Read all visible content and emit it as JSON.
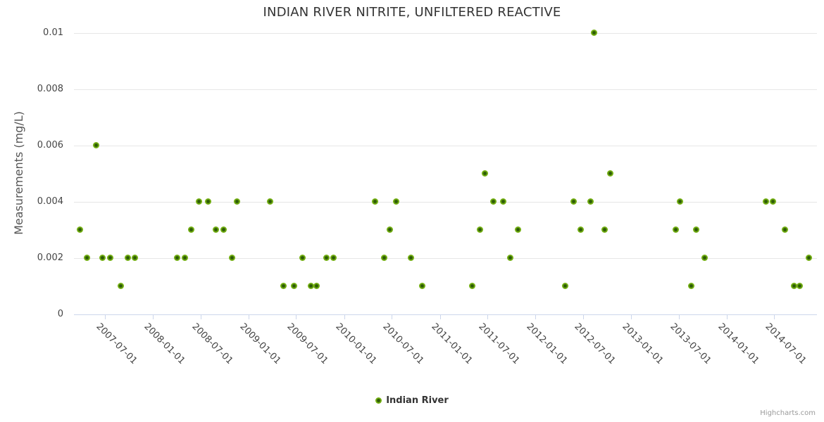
{
  "credits": {
    "text": "Highcharts.com"
  },
  "chart_data": {
    "type": "scatter",
    "title": "INDIAN RIVER NITRITE, UNFILTERED REACTIVE",
    "xlabel": "",
    "ylabel": "Measurements (mg/L)",
    "x_axis_type": "datetime",
    "x_tick_labels": [
      "2007-07-01",
      "2008-01-01",
      "2008-07-01",
      "2009-01-01",
      "2009-07-01",
      "2010-01-01",
      "2010-07-01",
      "2011-01-01",
      "2011-07-01",
      "2012-01-01",
      "2012-07-01",
      "2013-01-01",
      "2013-07-01",
      "2014-01-01",
      "2014-07-01"
    ],
    "y_ticks": [
      0,
      0.002,
      0.004,
      0.006,
      0.008,
      0.01
    ],
    "ylim": [
      0,
      0.01
    ],
    "grid": true,
    "legend_position": "bottom-center",
    "marker_color": "#72ae12",
    "marker_inner_color": "#2d5c06",
    "series": [
      {
        "name": "Indian River",
        "points": [
          [
            "2007-03-28",
            0.003
          ],
          [
            "2007-04-25",
            0.002
          ],
          [
            "2007-05-28",
            0.006
          ],
          [
            "2007-06-23",
            0.002
          ],
          [
            "2007-07-23",
            0.002
          ],
          [
            "2007-08-30",
            0.001
          ],
          [
            "2007-09-26",
            0.002
          ],
          [
            "2007-10-24",
            0.002
          ],
          [
            "2008-04-02",
            0.002
          ],
          [
            "2008-05-02",
            0.002
          ],
          [
            "2008-05-27",
            0.003
          ],
          [
            "2008-06-24",
            0.004
          ],
          [
            "2008-07-31",
            0.004
          ],
          [
            "2008-08-28",
            0.003
          ],
          [
            "2008-09-26",
            0.003
          ],
          [
            "2008-10-28",
            0.002
          ],
          [
            "2008-11-17",
            0.004
          ],
          [
            "2009-03-23",
            0.004
          ],
          [
            "2009-05-14",
            0.001
          ],
          [
            "2009-06-23",
            0.001
          ],
          [
            "2009-07-26",
            0.002
          ],
          [
            "2009-08-26",
            0.001
          ],
          [
            "2009-09-18",
            0.001
          ],
          [
            "2009-10-25",
            0.002
          ],
          [
            "2009-11-22",
            0.002
          ],
          [
            "2010-04-28",
            0.004
          ],
          [
            "2010-06-02",
            0.002
          ],
          [
            "2010-06-24",
            0.003
          ],
          [
            "2010-07-19",
            0.004
          ],
          [
            "2010-09-13",
            0.002
          ],
          [
            "2010-10-25",
            0.001
          ],
          [
            "2011-05-04",
            0.001
          ],
          [
            "2011-06-02",
            0.003
          ],
          [
            "2011-06-21",
            0.005
          ],
          [
            "2011-07-25",
            0.004
          ],
          [
            "2011-08-30",
            0.004
          ],
          [
            "2011-09-26",
            0.002
          ],
          [
            "2011-10-26",
            0.003
          ],
          [
            "2012-04-24",
            0.001
          ],
          [
            "2012-05-27",
            0.004
          ],
          [
            "2012-06-23",
            0.003
          ],
          [
            "2012-07-29",
            0.004
          ],
          [
            "2012-08-11",
            0.01
          ],
          [
            "2012-09-20",
            0.003
          ],
          [
            "2012-10-13",
            0.005
          ],
          [
            "2013-06-20",
            0.003
          ],
          [
            "2013-07-07",
            0.004
          ],
          [
            "2013-08-18",
            0.001
          ],
          [
            "2013-09-07",
            0.003
          ],
          [
            "2013-10-07",
            0.002
          ],
          [
            "2014-05-31",
            0.004
          ],
          [
            "2014-06-27",
            0.004
          ],
          [
            "2014-08-10",
            0.003
          ],
          [
            "2014-09-15",
            0.001
          ],
          [
            "2014-10-06",
            0.001
          ],
          [
            "2014-11-09",
            0.002
          ]
        ]
      }
    ]
  }
}
